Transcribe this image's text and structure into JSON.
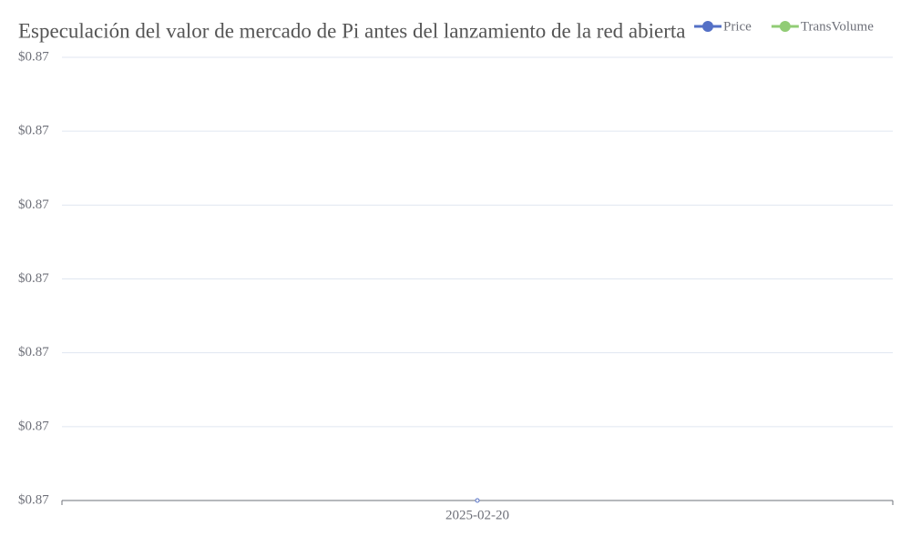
{
  "chart_data": {
    "type": "line",
    "title": "Especulación del valor de mercado de Pi antes del lanzamiento de la red abierta",
    "categories": [
      "2025-02-20"
    ],
    "series": [
      {
        "name": "Price",
        "color": "#5470c6",
        "values": [
          0.87
        ]
      },
      {
        "name": "TransVolume",
        "color": "#91cc75",
        "values": [
          null
        ]
      }
    ],
    "ylim": [
      0.87,
      0.8706
    ],
    "yticks": [
      {
        "value": 0.87,
        "label": "$0.87"
      },
      {
        "value": 0.8701,
        "label": "$0.87"
      },
      {
        "value": 0.8702,
        "label": "$0.87"
      },
      {
        "value": 0.8703,
        "label": "$0.87"
      },
      {
        "value": 0.8704,
        "label": "$0.87"
      },
      {
        "value": 0.8705,
        "label": "$0.87"
      },
      {
        "value": 0.8706,
        "label": "$0.87"
      }
    ],
    "grid": true,
    "legend": "top-right"
  }
}
